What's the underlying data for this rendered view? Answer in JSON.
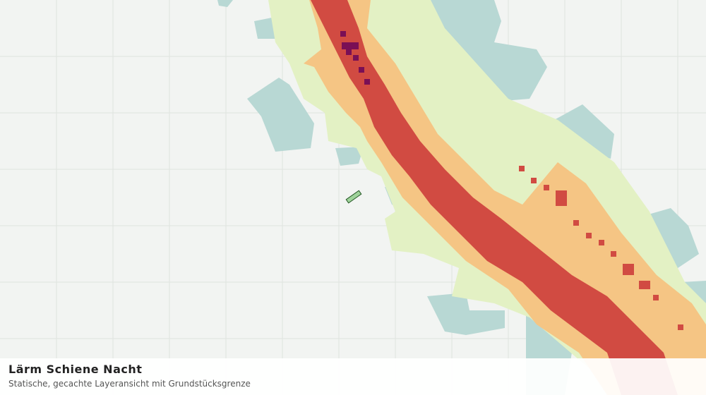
{
  "legend": {
    "title": "Lärm Schiene Nacht",
    "subtitle": "Statische, gecachte Layeransicht mit Grundstücksgrenze"
  }
}
